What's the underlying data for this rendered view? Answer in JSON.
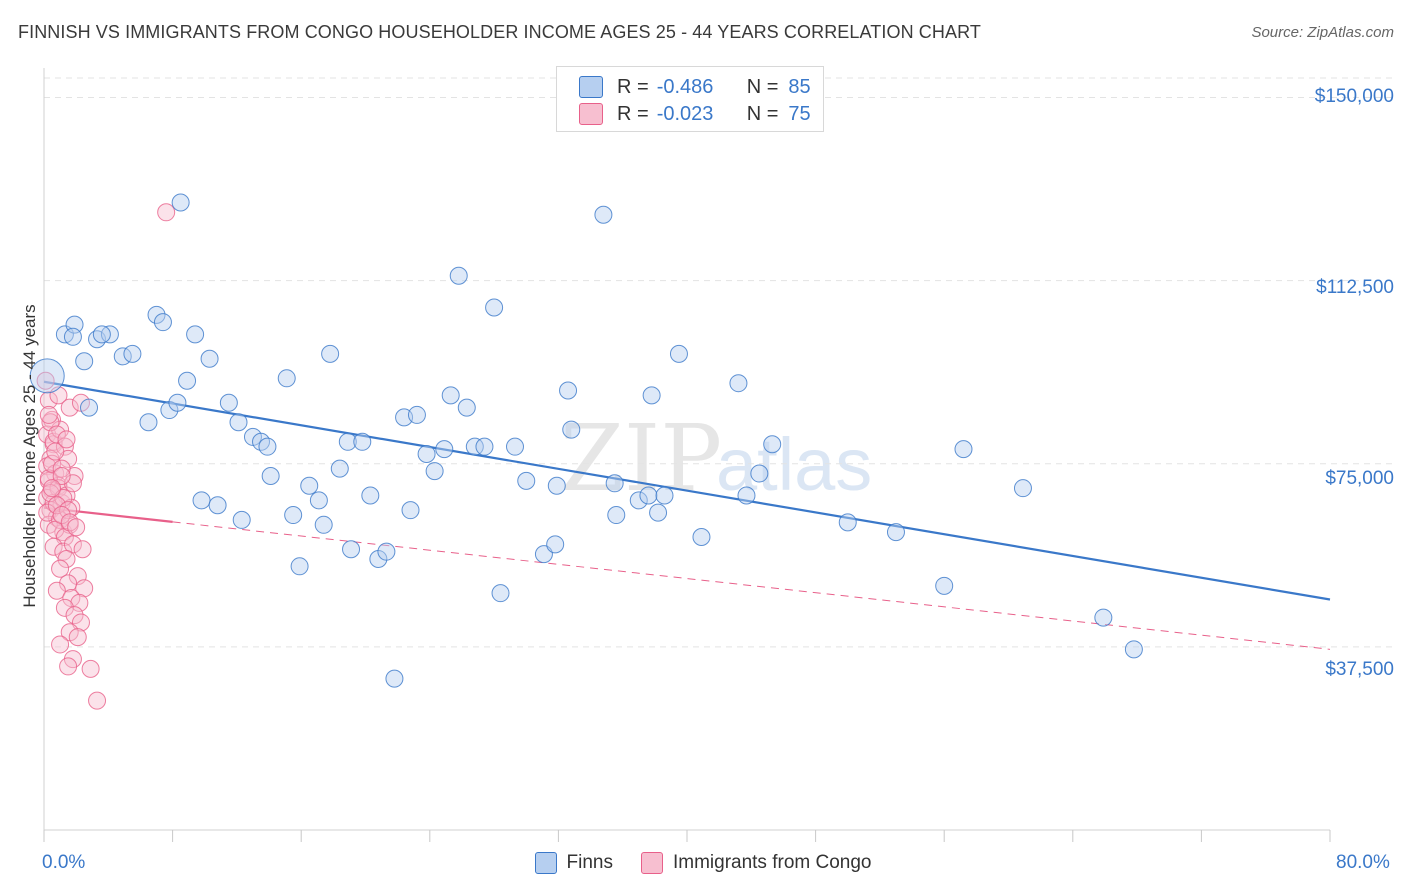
{
  "title": "FINNISH VS IMMIGRANTS FROM CONGO HOUSEHOLDER INCOME AGES 25 - 44 YEARS CORRELATION CHART",
  "source": "Source: ZipAtlas.com",
  "watermark": {
    "zip": "ZIP",
    "atlas": "atlas"
  },
  "colors": {
    "blue": "#3a78c9",
    "blue_fill": "#b6cff0",
    "pink": "#e8608a",
    "pink_fill": "#f7bfd0",
    "grid": "#e3e3e3"
  },
  "legend": {
    "rows": [
      {
        "r_label": "R =",
        "r_value": "-0.486",
        "n_label": "N =",
        "n_value": "85"
      },
      {
        "r_label": "R =",
        "r_value": "-0.023",
        "n_label": "N =",
        "n_value": "75"
      }
    ]
  },
  "chart_data": {
    "type": "scatter",
    "title": "FINNISH VS IMMIGRANTS FROM CONGO HOUSEHOLDER INCOME AGES 25 - 44 YEARS CORRELATION CHART",
    "xlabel": "",
    "ylabel": "Householder Income Ages 25 - 44 years",
    "xlim": [
      0,
      80
    ],
    "ylim": [
      0,
      154000
    ],
    "x_tick_labels": [
      "0.0%",
      "80.0%"
    ],
    "y_ticks": [
      37500,
      75000,
      112500,
      150000
    ],
    "y_tick_labels": [
      "$37,500",
      "$75,000",
      "$112,500",
      "$150,000"
    ],
    "legend_position": "bottom",
    "grid": true,
    "series": [
      {
        "name": "Finns",
        "r": -0.486,
        "n": 85,
        "trend": {
          "x": [
            0,
            80
          ],
          "y": [
            91800,
            47200
          ]
        },
        "points": [
          [
            0.2,
            93000
          ],
          [
            1.3,
            101500
          ],
          [
            1.9,
            103500
          ],
          [
            1.8,
            101000
          ],
          [
            2.5,
            96000
          ],
          [
            2.8,
            86500
          ],
          [
            3.3,
            100500
          ],
          [
            4.1,
            101500
          ],
          [
            3.6,
            101500
          ],
          [
            4.9,
            97000
          ],
          [
            5.5,
            97500
          ],
          [
            6.5,
            83500
          ],
          [
            7.0,
            105500
          ],
          [
            7.4,
            104000
          ],
          [
            7.8,
            86000
          ],
          [
            8.3,
            87500
          ],
          [
            8.5,
            128500
          ],
          [
            8.9,
            92000
          ],
          [
            9.4,
            101500
          ],
          [
            9.8,
            67500
          ],
          [
            10.3,
            96500
          ],
          [
            10.8,
            66500
          ],
          [
            11.5,
            87500
          ],
          [
            12.1,
            83500
          ],
          [
            12.3,
            63500
          ],
          [
            13.0,
            80500
          ],
          [
            13.5,
            79500
          ],
          [
            13.9,
            78500
          ],
          [
            14.1,
            72500
          ],
          [
            15.1,
            92500
          ],
          [
            15.5,
            64500
          ],
          [
            15.9,
            54000
          ],
          [
            16.5,
            70500
          ],
          [
            17.1,
            67500
          ],
          [
            17.4,
            62500
          ],
          [
            17.8,
            97500
          ],
          [
            18.4,
            74000
          ],
          [
            18.9,
            79500
          ],
          [
            19.1,
            57500
          ],
          [
            19.8,
            79500
          ],
          [
            20.3,
            68500
          ],
          [
            20.8,
            55500
          ],
          [
            21.3,
            57000
          ],
          [
            21.8,
            31000
          ],
          [
            22.4,
            84500
          ],
          [
            22.8,
            65500
          ],
          [
            23.2,
            85000
          ],
          [
            23.8,
            77000
          ],
          [
            24.3,
            73500
          ],
          [
            24.9,
            78000
          ],
          [
            25.3,
            89000
          ],
          [
            25.8,
            113500
          ],
          [
            26.3,
            86500
          ],
          [
            26.8,
            78500
          ],
          [
            27.4,
            78500
          ],
          [
            28.0,
            107000
          ],
          [
            28.4,
            48500
          ],
          [
            29.3,
            78500
          ],
          [
            30.0,
            71500
          ],
          [
            31.1,
            56500
          ],
          [
            31.8,
            58500
          ],
          [
            31.9,
            70500
          ],
          [
            32.6,
            90000
          ],
          [
            32.8,
            82000
          ],
          [
            34.8,
            126000
          ],
          [
            35.5,
            71000
          ],
          [
            35.6,
            64500
          ],
          [
            37.0,
            67500
          ],
          [
            37.6,
            68500
          ],
          [
            37.8,
            89000
          ],
          [
            38.2,
            65000
          ],
          [
            38.6,
            68500
          ],
          [
            39.5,
            97500
          ],
          [
            40.9,
            60000
          ],
          [
            43.2,
            91500
          ],
          [
            43.7,
            68500
          ],
          [
            44.5,
            73000
          ],
          [
            45.3,
            79000
          ],
          [
            50.0,
            63000
          ],
          [
            53.0,
            61000
          ],
          [
            56.0,
            50000
          ],
          [
            57.2,
            78000
          ],
          [
            60.9,
            70000
          ],
          [
            65.9,
            43500
          ],
          [
            67.8,
            37000
          ]
        ]
      },
      {
        "name": "Immigrants from Congo",
        "r": -0.023,
        "n": 75,
        "trend": {
          "solid_x": [
            0,
            8
          ],
          "dashed_x": [
            8,
            80
          ],
          "y": [
            66000,
            37000
          ]
        },
        "points": [
          [
            0.1,
            92000
          ],
          [
            0.3,
            88000
          ],
          [
            0.5,
            84000
          ],
          [
            0.2,
            81000
          ],
          [
            0.6,
            79000
          ],
          [
            0.4,
            76000
          ],
          [
            0.2,
            74500
          ],
          [
            0.7,
            73000
          ],
          [
            0.3,
            71500
          ],
          [
            0.9,
            70500
          ],
          [
            0.5,
            69500
          ],
          [
            0.2,
            68000
          ],
          [
            1.1,
            67000
          ],
          [
            0.4,
            65500
          ],
          [
            0.8,
            64000
          ],
          [
            0.3,
            62500
          ],
          [
            1.2,
            61000
          ],
          [
            0.6,
            79500
          ],
          [
            1.0,
            82000
          ],
          [
            0.4,
            83500
          ],
          [
            0.8,
            81000
          ],
          [
            1.3,
            78500
          ],
          [
            1.5,
            76000
          ],
          [
            0.3,
            72000
          ],
          [
            0.9,
            70000
          ],
          [
            1.4,
            68500
          ],
          [
            0.6,
            67000
          ],
          [
            1.7,
            66000
          ],
          [
            0.2,
            65000
          ],
          [
            1.0,
            63500
          ],
          [
            1.6,
            62500
          ],
          [
            0.7,
            61500
          ],
          [
            1.3,
            60000
          ],
          [
            1.9,
            72500
          ],
          [
            0.5,
            75000
          ],
          [
            1.1,
            74000
          ],
          [
            1.8,
            71000
          ],
          [
            0.4,
            69000
          ],
          [
            1.2,
            68000
          ],
          [
            0.8,
            66500
          ],
          [
            1.5,
            65500
          ],
          [
            1.1,
            64500
          ],
          [
            1.6,
            63000
          ],
          [
            2.0,
            62000
          ],
          [
            0.6,
            58000
          ],
          [
            1.2,
            57000
          ],
          [
            1.8,
            58500
          ],
          [
            2.4,
            57500
          ],
          [
            1.4,
            55500
          ],
          [
            1.0,
            53500
          ],
          [
            2.1,
            52000
          ],
          [
            1.5,
            50500
          ],
          [
            2.5,
            49500
          ],
          [
            0.8,
            49000
          ],
          [
            1.7,
            47500
          ],
          [
            2.2,
            46500
          ],
          [
            1.3,
            45500
          ],
          [
            1.9,
            44000
          ],
          [
            2.3,
            42500
          ],
          [
            1.6,
            40500
          ],
          [
            2.1,
            39500
          ],
          [
            1.0,
            38000
          ],
          [
            1.8,
            35000
          ],
          [
            2.9,
            33000
          ],
          [
            1.5,
            33500
          ],
          [
            3.3,
            26500
          ],
          [
            7.6,
            126500
          ],
          [
            0.9,
            89000
          ],
          [
            1.6,
            86500
          ],
          [
            0.3,
            85000
          ],
          [
            2.3,
            87500
          ],
          [
            0.7,
            77500
          ],
          [
            1.4,
            80000
          ],
          [
            1.1,
            72500
          ],
          [
            0.5,
            70000
          ]
        ]
      }
    ]
  },
  "axes": {
    "ylabel": "Householder Income Ages 25 - 44 years",
    "x_left": "0.0%",
    "x_right": "80.0%",
    "y_ticks": [
      "$150,000",
      "$112,500",
      "$75,000",
      "$37,500"
    ]
  },
  "bottom_legend": {
    "s1": "Finns",
    "s2": "Immigrants from Congo"
  }
}
